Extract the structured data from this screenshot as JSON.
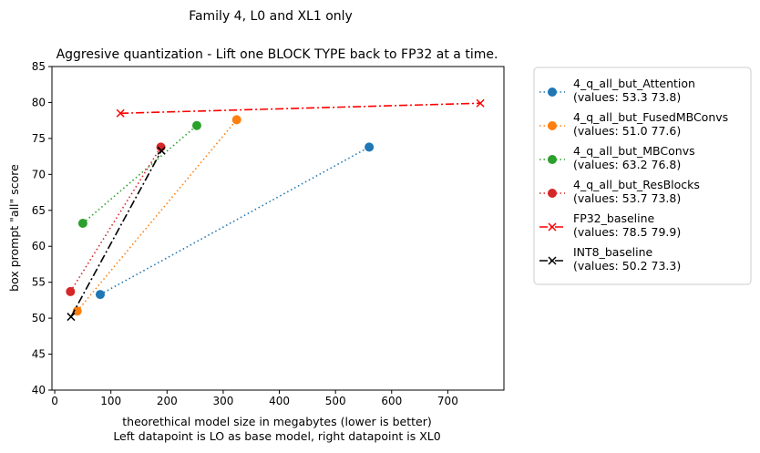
{
  "figure": {
    "suptitle": "Family 4, L0 and XL1 only"
  },
  "chart_data": {
    "type": "line",
    "title": "Aggresive quantization - Lift one BLOCK TYPE back to FP32 at a time.",
    "xlabel_line1": "theorethical model size in megabytes (lower is better)",
    "xlabel_line2": "Left datapoint is LO as base model, right datapoint is XL0",
    "ylabel": "box prompt \"all\" score",
    "xlim": [
      -5,
      800
    ],
    "ylim": [
      40,
      85
    ],
    "xticks": [
      0,
      100,
      200,
      300,
      400,
      500,
      600,
      700
    ],
    "yticks": [
      40,
      45,
      50,
      55,
      60,
      65,
      70,
      75,
      80,
      85
    ],
    "grid": false,
    "legend_position": "outside-right",
    "series": [
      {
        "name": "4_q_all_but_Attention",
        "label2": "(values: 53.3 73.8)",
        "color": "#1f77b4",
        "linestyle": "dotted",
        "marker": "circle",
        "x": [
          81,
          560
        ],
        "y": [
          53.3,
          73.8
        ]
      },
      {
        "name": "4_q_all_but_FusedMBConvs",
        "label2": "(values: 51.0 77.6)",
        "color": "#ff7f0e",
        "linestyle": "dotted",
        "marker": "circle",
        "x": [
          40,
          324
        ],
        "y": [
          51.0,
          77.6
        ]
      },
      {
        "name": "4_q_all_but_MBConvs",
        "label2": "(values: 63.2 76.8)",
        "color": "#2ca02c",
        "linestyle": "dotted",
        "marker": "circle",
        "x": [
          50,
          253
        ],
        "y": [
          63.2,
          76.8
        ]
      },
      {
        "name": "4_q_all_but_ResBlocks",
        "label2": "(values: 53.7 73.8)",
        "color": "#d62728",
        "linestyle": "dotted",
        "marker": "circle",
        "x": [
          28,
          189
        ],
        "y": [
          53.7,
          73.8
        ]
      },
      {
        "name": "FP32_baseline",
        "label2": "(values: 78.5 79.9)",
        "color": "#ff0000",
        "linestyle": "dashdot",
        "marker": "x",
        "x": [
          117,
          758
        ],
        "y": [
          78.5,
          79.9
        ]
      },
      {
        "name": "INT8_baseline",
        "label2": "(values: 50.2 73.3)",
        "color": "#000000",
        "linestyle": "dashdot",
        "marker": "x",
        "x": [
          29,
          190
        ],
        "y": [
          50.2,
          73.3
        ]
      }
    ]
  }
}
